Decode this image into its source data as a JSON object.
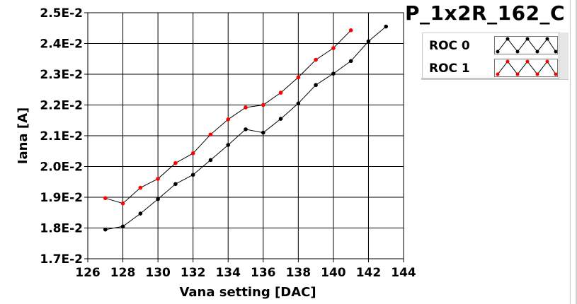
{
  "chart_data": {
    "type": "line",
    "title": "P_1x2R_162_C",
    "xlabel": "Vana setting [DAC]",
    "ylabel": "Iana [A]",
    "xlim": [
      126,
      144
    ],
    "ylim": [
      0.017,
      0.025
    ],
    "x_ticks": [
      "126",
      "128",
      "130",
      "132",
      "134",
      "136",
      "138",
      "140",
      "142",
      "144"
    ],
    "y_ticks": [
      "1.7E-2",
      "1.8E-2",
      "1.9E-2",
      "2.0E-2",
      "2.1E-2",
      "2.2E-2",
      "2.3E-2",
      "2.4E-2",
      "2.5E-2"
    ],
    "grid": true,
    "legend_position": "top-right",
    "series": [
      {
        "name": "ROC 0",
        "color": "#000000",
        "x": [
          127,
          128,
          129,
          130,
          131,
          132,
          133,
          134,
          135,
          136,
          137,
          138,
          139,
          140,
          141,
          142,
          143
        ],
        "y": [
          0.01795,
          0.01805,
          0.01847,
          0.01894,
          0.01943,
          0.01973,
          0.02021,
          0.0207,
          0.02121,
          0.0211,
          0.02155,
          0.02205,
          0.02265,
          0.02302,
          0.02343,
          0.02407,
          0.02455
        ]
      },
      {
        "name": "ROC 1",
        "color": "#ff0000",
        "x": [
          127,
          128,
          129,
          130,
          131,
          132,
          133,
          134,
          135,
          136,
          137,
          138,
          139,
          140,
          141
        ],
        "y": [
          0.01897,
          0.0188,
          0.01931,
          0.0196,
          0.02011,
          0.02043,
          0.02104,
          0.02153,
          0.02192,
          0.022,
          0.0224,
          0.0229,
          0.02347,
          0.02385,
          0.02443
        ]
      }
    ]
  }
}
